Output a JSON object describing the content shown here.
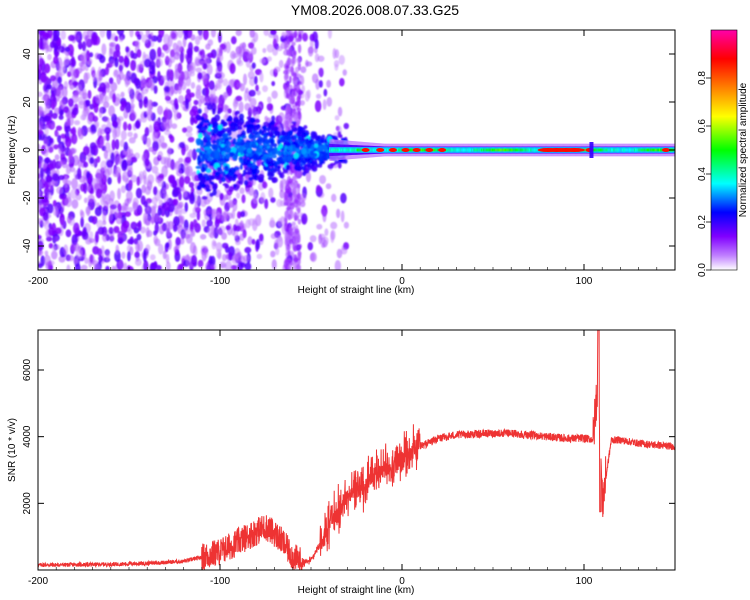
{
  "title": "YM08.2026.008.07.33.G25",
  "chart_data": [
    {
      "type": "heatmap",
      "panel": "spectrogram",
      "xlabel": "Height of straight line (km)",
      "ylabel": "Frequency (Hz)",
      "xlim": [
        -200,
        150
      ],
      "ylim": [
        -50,
        50
      ],
      "xticks": [
        -200,
        -100,
        0,
        100
      ],
      "xtick_labels": [
        "-200",
        "-100",
        "0",
        "100"
      ],
      "yticks": [
        -40,
        -20,
        0,
        20,
        40
      ],
      "ytick_labels": [
        "-40",
        "-20",
        "0",
        "20",
        "40"
      ],
      "colorbar": {
        "label": "Normalized spectral amplitude",
        "range": [
          0,
          1
        ],
        "ticks": [
          0.0,
          0.2,
          0.4,
          0.6,
          0.8
        ],
        "tick_labels": [
          "0.0",
          "0.2",
          "0.4",
          "0.6",
          "0.8"
        ],
        "colors": [
          "#ffffff",
          "#8000ff",
          "#0000ff",
          "#00ffff",
          "#00ff00",
          "#ffff00",
          "#ff8000",
          "#ff0000",
          "#ff00ff"
        ]
      },
      "description_points": {
        "noise_region_x": [
          -200,
          -100
        ],
        "transition_region_x": [
          -100,
          -30
        ],
        "tone_region_x": [
          -30,
          150
        ],
        "tone_frequency": 0
      }
    },
    {
      "type": "line",
      "panel": "snr",
      "xlabel": "Height of straight line (km)",
      "ylabel": "SNR (10 * v/v)",
      "xlim": [
        -200,
        150
      ],
      "ylim": [
        0,
        7200
      ],
      "xticks": [
        -200,
        -100,
        0,
        100
      ],
      "xtick_labels": [
        "-200",
        "-100",
        "0",
        "100"
      ],
      "yticks": [
        2000,
        4000,
        6000
      ],
      "ytick_labels": [
        "2000",
        "4000",
        "6000"
      ],
      "color": "#ee3333",
      "series": [
        {
          "name": "SNR",
          "x": [
            -200,
            -180,
            -160,
            -140,
            -120,
            -110,
            -100,
            -90,
            -80,
            -75,
            -70,
            -65,
            -60,
            -55,
            -50,
            -45,
            -40,
            -35,
            -30,
            -25,
            -20,
            -15,
            -10,
            -5,
            0,
            10,
            20,
            30,
            40,
            50,
            60,
            70,
            80,
            90,
            100,
            105,
            108,
            110,
            115,
            120,
            130,
            140,
            150
          ],
          "y": [
            150,
            160,
            170,
            200,
            260,
            380,
            550,
            850,
            1150,
            1300,
            1100,
            800,
            400,
            250,
            300,
            800,
            1400,
            1800,
            2200,
            2400,
            2600,
            2900,
            3000,
            3200,
            3300,
            3700,
            3950,
            4050,
            4080,
            4100,
            4100,
            4050,
            4000,
            3950,
            3950,
            3920,
            5900,
            2000,
            3900,
            3900,
            3800,
            3750,
            3700
          ]
        }
      ]
    }
  ]
}
